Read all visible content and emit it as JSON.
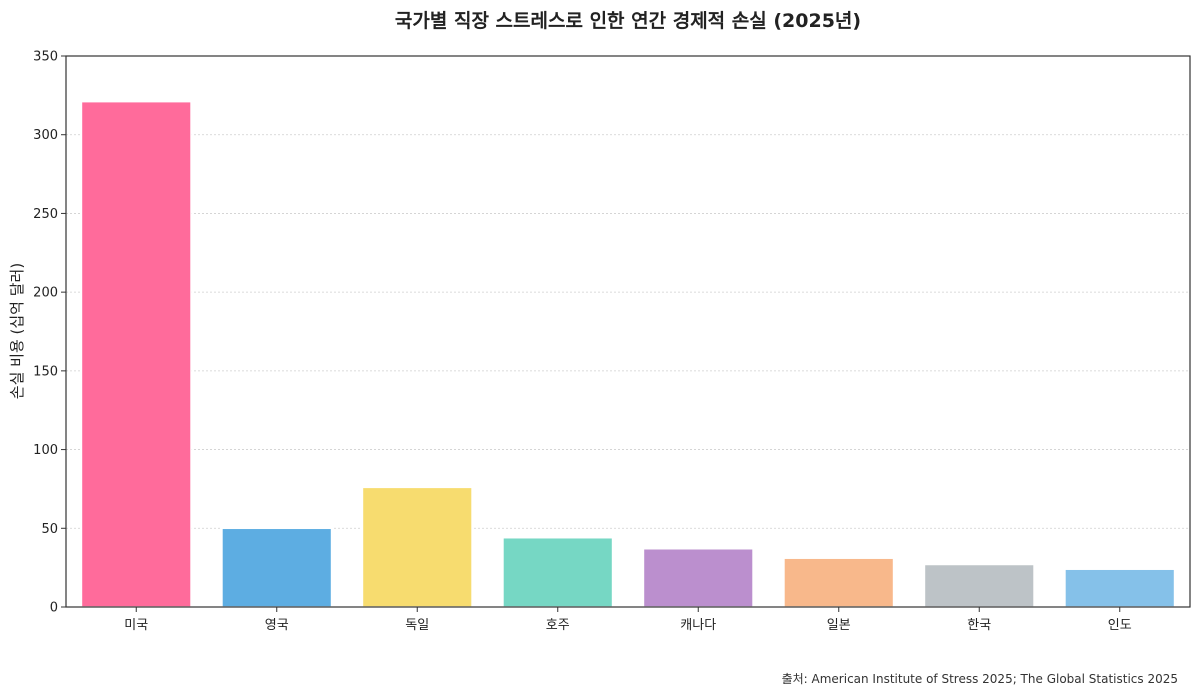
{
  "chart_data": {
    "type": "bar",
    "title": "국가별 직장 스트레스로 인한 연간 경제적 손실 (2025년)",
    "xlabel": "",
    "ylabel": "손실 비용 (십억 달러)",
    "ylim": [
      0,
      350
    ],
    "yticks": [
      0,
      50,
      100,
      150,
      200,
      250,
      300,
      350
    ],
    "categories": [
      "미국",
      "영국",
      "독일",
      "호주",
      "캐나다",
      "일본",
      "한국",
      "인도"
    ],
    "values": [
      321,
      50,
      76,
      44,
      37,
      31,
      27,
      24
    ],
    "colors": [
      "#ff6b9b",
      "#5dade2",
      "#f7dc6f",
      "#76d7c4",
      "#bb8fce",
      "#f8b88b",
      "#bdc3c7",
      "#85c1e9"
    ],
    "grid": "horizontal-dotted",
    "source": "출처: American Institute of Stress 2025; The Global Statistics 2025"
  }
}
